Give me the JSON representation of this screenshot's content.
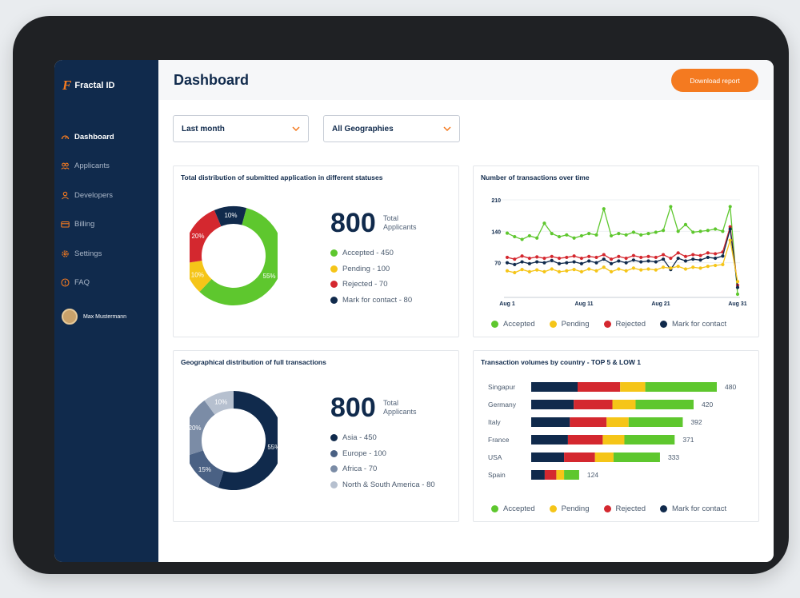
{
  "brand": {
    "logo_letter": "F",
    "name": "Fractal ID"
  },
  "nav": {
    "items": [
      {
        "label": "Dashboard",
        "icon": "speedometer-icon",
        "active": true
      },
      {
        "label": "Applicants",
        "icon": "users-icon",
        "active": false
      },
      {
        "label": "Developers",
        "icon": "user-icon",
        "active": false
      },
      {
        "label": "Billing",
        "icon": "card-icon",
        "active": false
      },
      {
        "label": "Settings",
        "icon": "gear-icon",
        "active": false
      },
      {
        "label": "FAQ",
        "icon": "help-icon",
        "active": false
      }
    ]
  },
  "user": {
    "name": "Max Mustermann"
  },
  "header": {
    "title": "Dashboard",
    "download_label": "Download report"
  },
  "filters": {
    "period": "Last month",
    "geography": "All Geographies"
  },
  "colors": {
    "accepted": "#5ec72e",
    "pending": "#f5c518",
    "rejected": "#d4282f",
    "contact": "#102a4c",
    "orange": "#f47a20"
  },
  "cards": {
    "status": {
      "title": "Total distribution of submitted application in different statuses",
      "total": "800",
      "total_label_1": "Total",
      "total_label_2": "Applicants",
      "legend": [
        "Accepted - 450",
        "Pending - 100",
        "Rejected - 70",
        "Mark for contact - 80"
      ]
    },
    "transactions": {
      "title": "Number of transactions over time",
      "legend": [
        "Accepted",
        "Pending",
        "Rejected",
        "Mark for contact"
      ]
    },
    "geo": {
      "title": "Geographical distribution of full transactions",
      "total": "800",
      "total_label_1": "Total",
      "total_label_2": "Applicants",
      "legend": [
        "Asia - 450",
        "Europe - 100",
        "Africa - 70",
        "North & South America - 80"
      ]
    },
    "volumes": {
      "title": "Transaction volumes by country - TOP 5 & LOW 1",
      "legend": [
        "Accepted",
        "Pending",
        "Rejected",
        "Mark for contact"
      ]
    }
  },
  "chart_data": [
    {
      "type": "pie",
      "variant": "donut",
      "labels": [
        "Accepted",
        "Pending",
        "Rejected",
        "Mark for contact"
      ],
      "values": [
        55,
        10,
        20,
        10
      ],
      "slice_labels": [
        "55%",
        "10%",
        "20%",
        "10%"
      ],
      "colors": [
        "#5ec72e",
        "#f5c518",
        "#d4282f",
        "#102a4c"
      ]
    },
    {
      "type": "line",
      "x_ticks": [
        "Aug 1",
        "Aug 11",
        "Aug 21",
        "Aug 31"
      ],
      "y_ticks": [
        "210",
        "140",
        "70"
      ],
      "ylim": [
        0,
        210
      ],
      "x": [
        1,
        2,
        3,
        4,
        5,
        6,
        7,
        8,
        9,
        10,
        11,
        12,
        13,
        14,
        15,
        16,
        17,
        18,
        19,
        20,
        21,
        22,
        23,
        24,
        25,
        26,
        27,
        28,
        29,
        30,
        31,
        32
      ],
      "series": [
        {
          "name": "Accepted",
          "color": "#5ec72e",
          "values": [
            136,
            128,
            122,
            130,
            125,
            158,
            135,
            128,
            132,
            125,
            130,
            135,
            132,
            190,
            130,
            135,
            132,
            138,
            132,
            135,
            138,
            142,
            195,
            140,
            155,
            138,
            140,
            142,
            145,
            140,
            195,
            0
          ]
        },
        {
          "name": "Rejected",
          "color": "#d4282f",
          "values": [
            82,
            78,
            85,
            80,
            83,
            80,
            84,
            80,
            82,
            85,
            80,
            84,
            82,
            88,
            78,
            84,
            80,
            86,
            82,
            84,
            82,
            88,
            80,
            92,
            84,
            88,
            86,
            92,
            90,
            94,
            150,
            20
          ]
        },
        {
          "name": "Mark for contact",
          "color": "#102a4c",
          "values": [
            70,
            66,
            72,
            68,
            72,
            70,
            75,
            68,
            70,
            72,
            68,
            74,
            70,
            78,
            68,
            74,
            70,
            76,
            72,
            74,
            72,
            78,
            55,
            80,
            74,
            78,
            76,
            82,
            80,
            85,
            145,
            15
          ]
        },
        {
          "name": "Pending",
          "color": "#f5c518",
          "values": [
            52,
            48,
            55,
            50,
            54,
            50,
            56,
            50,
            52,
            55,
            50,
            56,
            52,
            60,
            50,
            56,
            52,
            58,
            54,
            56,
            54,
            60,
            58,
            62,
            56,
            60,
            58,
            62,
            64,
            66,
            120,
            28
          ]
        }
      ]
    },
    {
      "type": "pie",
      "variant": "donut",
      "labels": [
        "Asia",
        "Europe",
        "Africa",
        "North & South America"
      ],
      "values": [
        55,
        15,
        20,
        10
      ],
      "slice_labels": [
        "55%",
        "15%",
        "20%",
        "10%"
      ],
      "colors": [
        "#102a4c",
        "#4a6184",
        "#7b8ca6",
        "#b6c0cf"
      ]
    },
    {
      "type": "bar",
      "orientation": "horizontal",
      "stacked": true,
      "categories": [
        "Singapur",
        "Germany",
        "Italy",
        "France",
        "USA",
        "Spain"
      ],
      "totals": [
        480,
        420,
        392,
        371,
        333,
        124
      ],
      "series": [
        {
          "name": "Mark for contact",
          "color": "#102a4c",
          "values": [
            120,
            110,
            100,
            95,
            85,
            35
          ]
        },
        {
          "name": "Rejected",
          "color": "#d4282f",
          "values": [
            110,
            100,
            95,
            90,
            80,
            30
          ]
        },
        {
          "name": "Pending",
          "color": "#f5c518",
          "values": [
            65,
            60,
            57,
            56,
            48,
            20
          ]
        },
        {
          "name": "Accepted",
          "color": "#5ec72e",
          "values": [
            185,
            150,
            140,
            130,
            120,
            39
          ]
        }
      ]
    }
  ]
}
